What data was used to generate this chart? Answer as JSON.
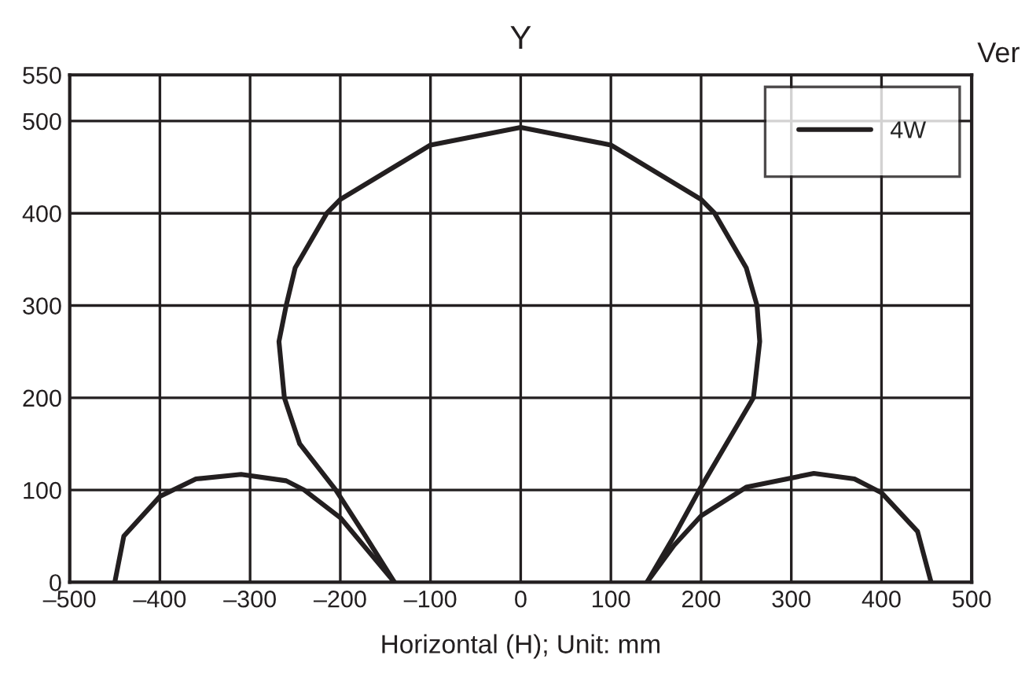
{
  "chart_data": {
    "type": "line",
    "title": "Y",
    "xlabel": "Horizontal (H); Unit: mm",
    "annotations": [
      "Ver"
    ],
    "series": [
      {
        "name": "4W",
        "color": "#231f20",
        "x": [
          -140,
          -172,
          -205,
          -245,
          -262,
          -268,
          -260,
          -250,
          -215,
          -200,
          -100,
          0,
          100,
          200,
          215,
          250,
          262,
          265,
          258,
          240,
          198,
          170,
          140
        ],
        "values": [
          0,
          50,
          100,
          150,
          200,
          261,
          300,
          341,
          400,
          415,
          474,
          493,
          474,
          415,
          400,
          341,
          300,
          261,
          200,
          170,
          100,
          50,
          0
        ]
      },
      {
        "color": "#231f20",
        "x": [
          -450,
          -440,
          -400,
          -360,
          -310,
          -260,
          -240,
          -200,
          -170,
          -140
        ],
        "values": [
          0,
          50,
          93,
          112,
          117,
          110,
          100,
          70,
          35,
          0
        ]
      },
      {
        "color": "#231f20",
        "x": [
          140,
          170,
          200,
          250,
          325,
          370,
          400,
          440,
          455
        ],
        "values": [
          0,
          40,
          72,
          103,
          118,
          112,
          97,
          55,
          0
        ]
      }
    ],
    "xlim": [
      -500,
      500
    ],
    "ylim": [
      0,
      550
    ],
    "xticks": [
      {
        "value": -500,
        "label": "–500"
      },
      {
        "value": -400,
        "label": "–400"
      },
      {
        "value": -300,
        "label": "–300"
      },
      {
        "value": -200,
        "label": "–200"
      },
      {
        "value": -100,
        "label": "–100"
      },
      0,
      100,
      200,
      300,
      400,
      500
    ],
    "yticks": [
      0,
      100,
      200,
      300,
      400,
      500,
      550
    ],
    "grid": true,
    "legend": "top right",
    "marker": "none",
    "line_style": "solid"
  }
}
